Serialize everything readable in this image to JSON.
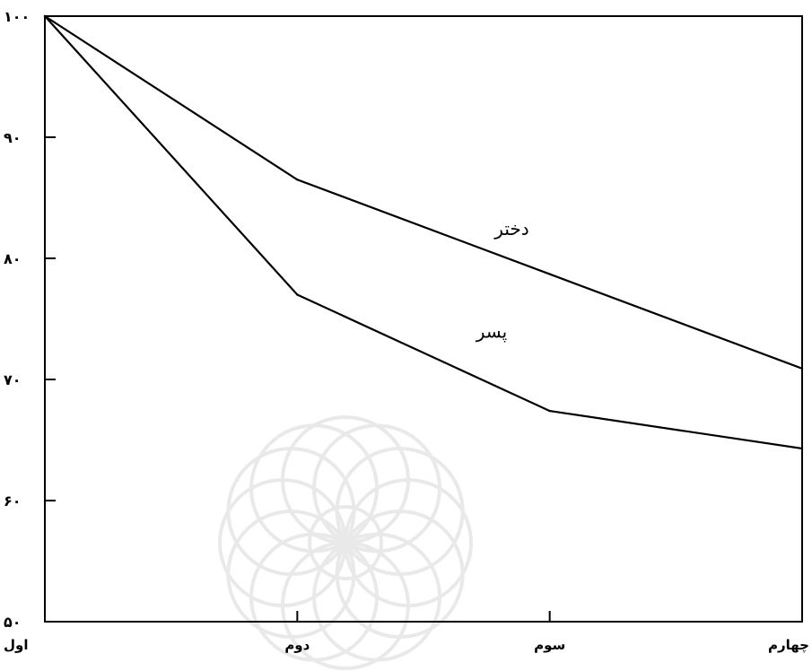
{
  "chart_data": {
    "type": "line",
    "categories": [
      "اول",
      "دوم",
      "سوم",
      "چهارم"
    ],
    "ylim": [
      50,
      100
    ],
    "yticks": [
      50,
      60,
      70,
      80,
      90,
      100
    ],
    "ytick_labels": [
      "۵۰",
      "۶۰",
      "۷۰",
      "۸۰",
      "۹۰",
      "۱۰۰"
    ],
    "grid": false,
    "legend": "none",
    "series": [
      {
        "name": "دختر",
        "values": [
          100,
          86.5,
          78.7,
          70.9
        ]
      },
      {
        "name": "پسر",
        "values": [
          100,
          77,
          67.4,
          64.3
        ]
      }
    ],
    "line_color": "#000000"
  }
}
